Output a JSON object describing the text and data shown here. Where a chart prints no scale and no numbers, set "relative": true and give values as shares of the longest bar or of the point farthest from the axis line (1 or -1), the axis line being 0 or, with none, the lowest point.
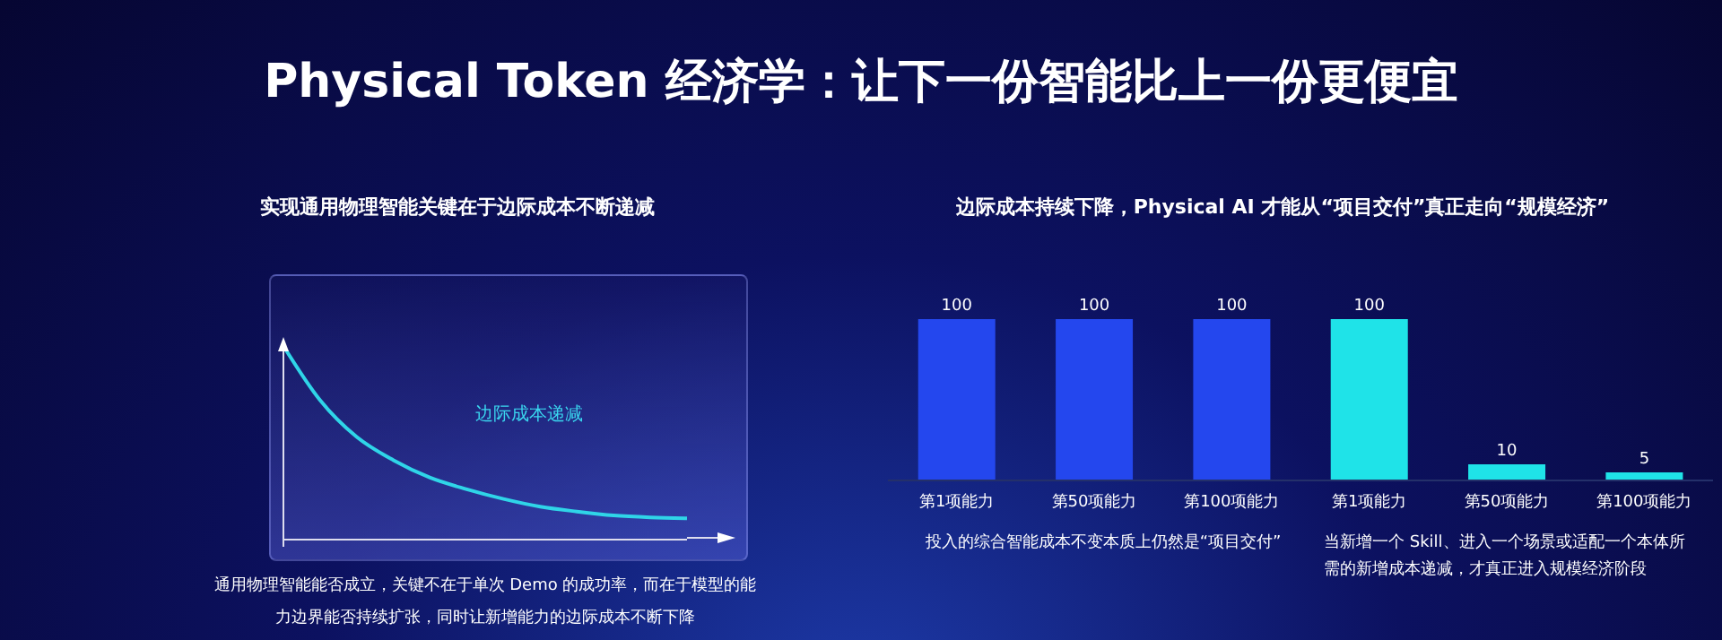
{
  "chart_data": [
    {
      "type": "line",
      "title": "Physical Token 经济学：让下一份智能比上一份更便宜",
      "subtitle": "实现通用物理智能关键在于边际成本不断递减",
      "relative": true,
      "categories": [
        null,
        null,
        null,
        null,
        null,
        null,
        null,
        null,
        null,
        null,
        null,
        null
      ],
      "series": [
        {
          "color": "#2fd5e8",
          "values": [
            1,
            0.72,
            0.53,
            0.41,
            0.32,
            0.26,
            0.21,
            0.17,
            0.145,
            0.125,
            0.115,
            0.11
          ]
        }
      ],
      "marker": "none",
      "line_style": "solid",
      "grid": false,
      "legend": false,
      "annotations": [
        "边际成本递减",
        "通用物理智能能否成立，关键不在于单次 Demo 的成功率，而在于模型的能力边界能否持续扩张，同时让新增能力的边际成本不断下降"
      ]
    },
    {
      "type": "bar",
      "title": "边际成本持续下降，Physical AI 才能从“项目交付”真正走向“规模经济”",
      "tick_labels": "x",
      "categories": [
        "第1项能力",
        "第50项能力",
        "第100项能力",
        "第1项能力",
        "第50项能力",
        "第100项能力"
      ],
      "values": [
        100,
        100,
        100,
        100,
        10,
        5
      ],
      "colors": [
        "#2447ee",
        "#2447ee",
        "#2447ee",
        "#1fe3e8",
        "#1fe3e8",
        "#1fe3e8"
      ],
      "data_labels": true,
      "grid": false,
      "legend": false,
      "annotations": [
        "投入的综合智能成本不变本质上仍然是“项目交付”",
        "当新增一个 Skill、进入一个场景或适配一个本体所需的新增成本递减，才真正进入规模经济阶段"
      ]
    }
  ]
}
